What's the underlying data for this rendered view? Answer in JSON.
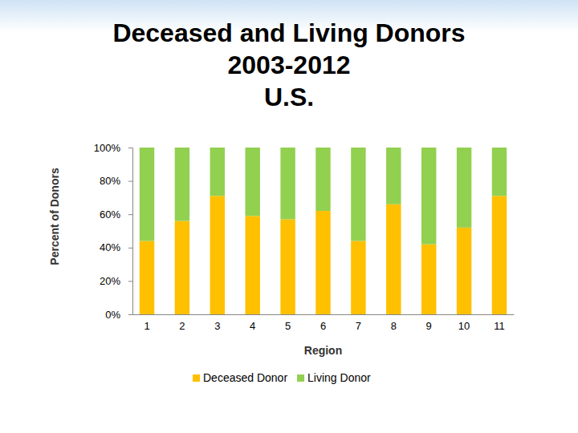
{
  "chart_data": {
    "type": "bar",
    "stacked": true,
    "title": "Deceased and Living Donors\n2003-2012\nU.S.",
    "x_label": "Region",
    "y_label": "Percent of Donors",
    "categories": [
      "1",
      "2",
      "3",
      "4",
      "5",
      "6",
      "7",
      "8",
      "9",
      "10",
      "11"
    ],
    "series": [
      {
        "name": "Deceased Donor",
        "color": "#ffc000",
        "values": [
          44,
          56,
          71,
          59,
          57,
          62,
          44,
          66,
          42,
          52,
          71
        ]
      },
      {
        "name": "Living Donor",
        "color": "#92d050",
        "values": [
          56,
          44,
          29,
          41,
          43,
          38,
          56,
          34,
          58,
          48,
          29
        ]
      }
    ],
    "ylim": [
      0,
      100
    ],
    "yticks": [
      {
        "value": 0,
        "label": "0%"
      },
      {
        "value": 20,
        "label": "20%"
      },
      {
        "value": 40,
        "label": "40%"
      },
      {
        "value": 60,
        "label": "60%"
      },
      {
        "value": 80,
        "label": "80%"
      },
      {
        "value": 100,
        "label": "100%"
      }
    ],
    "grid": false,
    "legend": "bottom"
  }
}
